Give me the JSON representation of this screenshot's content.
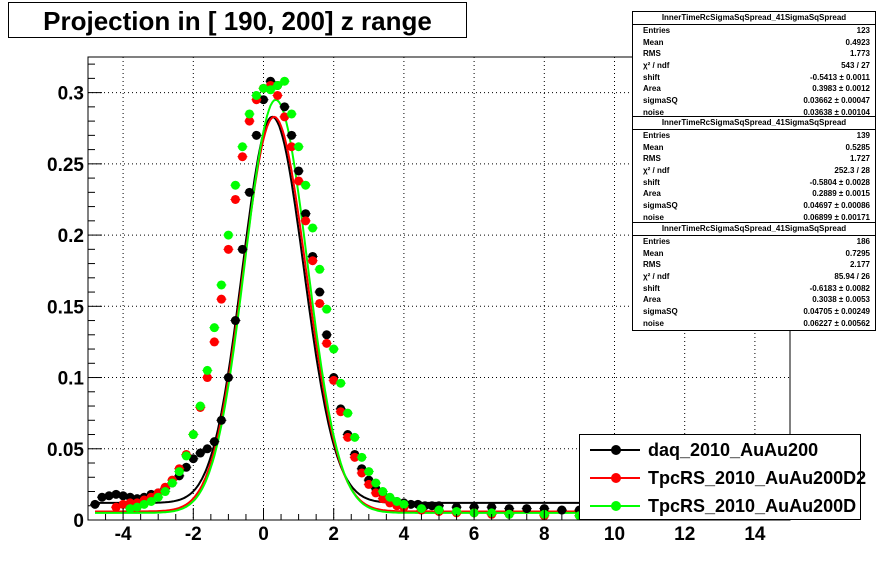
{
  "title": "Projection in [ 190, 200] z range",
  "chart_data": {
    "type": "scatter",
    "title": "Projection in [ 190, 200] z range",
    "xlim": [
      -5,
      15
    ],
    "ylim": [
      0,
      0.325
    ],
    "x_ticks": [
      "-4",
      "-2",
      "0",
      "2",
      "4",
      "6",
      "8",
      "10",
      "12",
      "14"
    ],
    "x_tick_values": [
      -4,
      -2,
      0,
      2,
      4,
      6,
      8,
      10,
      12,
      14
    ],
    "y_ticks": [
      "0",
      "0.05",
      "0.1",
      "0.15",
      "0.2",
      "0.25",
      "0.3"
    ],
    "y_tick_values": [
      0,
      0.05,
      0.1,
      0.15,
      0.2,
      0.25,
      0.3
    ],
    "grid": true,
    "legend_position": "bottom-right",
    "series": [
      {
        "name": "daq_2010_AuAu200",
        "color": "#000000",
        "x": [
          -4.8,
          -4.6,
          -4.4,
          -4.2,
          -4.0,
          -3.8,
          -3.6,
          -3.4,
          -3.2,
          -3.0,
          -2.8,
          -2.6,
          -2.4,
          -2.2,
          -2.0,
          -1.8,
          -1.6,
          -1.4,
          -1.2,
          -1.0,
          -0.8,
          -0.6,
          -0.4,
          -0.2,
          0.0,
          0.2,
          0.4,
          0.6,
          0.8,
          1.0,
          1.2,
          1.4,
          1.6,
          1.8,
          2.0,
          2.2,
          2.4,
          2.6,
          2.8,
          3.0,
          3.2,
          3.4,
          3.6,
          3.8,
          4.0,
          4.2,
          4.4,
          4.6,
          4.8,
          5.0,
          5.5,
          6.0,
          6.5,
          7.0,
          7.5,
          8.0,
          8.5,
          9.0
        ],
        "y": [
          0.011,
          0.016,
          0.017,
          0.018,
          0.017,
          0.016,
          0.015,
          0.016,
          0.018,
          0.019,
          0.022,
          0.026,
          0.031,
          0.037,
          0.043,
          0.047,
          0.05,
          0.055,
          0.07,
          0.1,
          0.14,
          0.19,
          0.23,
          0.27,
          0.295,
          0.308,
          0.305,
          0.29,
          0.27,
          0.245,
          0.215,
          0.185,
          0.16,
          0.13,
          0.1,
          0.078,
          0.06,
          0.046,
          0.036,
          0.028,
          0.022,
          0.018,
          0.015,
          0.013,
          0.012,
          0.011,
          0.011,
          0.01,
          0.01,
          0.01,
          0.009,
          0.009,
          0.009,
          0.008,
          0.008,
          0.008,
          0.007,
          0.007
        ]
      },
      {
        "name": "TpcRS_2010_AuAu200D2",
        "color": "#ff0000",
        "x": [
          -4.2,
          -4.0,
          -3.8,
          -3.6,
          -3.4,
          -3.2,
          -3.0,
          -2.8,
          -2.6,
          -2.4,
          -2.2,
          -2.0,
          -1.8,
          -1.6,
          -1.4,
          -1.2,
          -1.0,
          -0.8,
          -0.6,
          -0.4,
          -0.2,
          0.0,
          0.2,
          0.4,
          0.6,
          0.8,
          1.0,
          1.2,
          1.4,
          1.6,
          1.8,
          2.0,
          2.2,
          2.4,
          2.6,
          2.8,
          3.0,
          3.2,
          3.4,
          3.6,
          3.8,
          4.0,
          4.5,
          5.0,
          5.5,
          6.0,
          6.5,
          7.0,
          8.0,
          9.0
        ],
        "y": [
          0.009,
          0.011,
          0.012,
          0.012,
          0.014,
          0.016,
          0.019,
          0.023,
          0.028,
          0.036,
          0.046,
          0.06,
          0.079,
          0.1,
          0.125,
          0.155,
          0.19,
          0.225,
          0.255,
          0.28,
          0.295,
          0.303,
          0.305,
          0.298,
          0.283,
          0.262,
          0.238,
          0.21,
          0.182,
          0.152,
          0.124,
          0.098,
          0.076,
          0.058,
          0.044,
          0.033,
          0.025,
          0.019,
          0.015,
          0.012,
          0.01,
          0.009,
          0.007,
          0.006,
          0.005,
          0.005,
          0.004,
          0.004,
          0.003,
          0.003
        ]
      },
      {
        "name": "TpcRS_2010_AuAu200D",
        "color": "#00ff00",
        "x": [
          -3.8,
          -3.6,
          -3.4,
          -3.2,
          -3.0,
          -2.8,
          -2.6,
          -2.4,
          -2.2,
          -2.0,
          -1.8,
          -1.6,
          -1.4,
          -1.2,
          -1.0,
          -0.8,
          -0.6,
          -0.4,
          -0.2,
          0.0,
          0.2,
          0.4,
          0.6,
          0.8,
          1.0,
          1.2,
          1.4,
          1.6,
          1.8,
          2.0,
          2.2,
          2.4,
          2.6,
          2.8,
          3.0,
          3.2,
          3.4,
          3.6,
          3.8,
          4.0,
          4.5,
          5.0,
          5.5,
          6.0,
          6.5,
          7.0,
          8.0,
          9.0
        ],
        "y": [
          0.008,
          0.009,
          0.011,
          0.013,
          0.016,
          0.02,
          0.026,
          0.034,
          0.045,
          0.06,
          0.08,
          0.105,
          0.135,
          0.165,
          0.2,
          0.235,
          0.262,
          0.285,
          0.298,
          0.303,
          0.302,
          0.305,
          0.308,
          0.285,
          0.262,
          0.235,
          0.205,
          0.176,
          0.148,
          0.12,
          0.096,
          0.075,
          0.058,
          0.044,
          0.034,
          0.026,
          0.02,
          0.016,
          0.013,
          0.011,
          0.008,
          0.007,
          0.006,
          0.005,
          0.005,
          0.004,
          0.004,
          0.003
        ]
      }
    ],
    "fits": [
      {
        "series": "daq_2010_AuAu200",
        "color": "#000000",
        "shift": -0.5413,
        "area": 0.3983,
        "sigmaSQ": 0.03662,
        "noise": 0.03638
      },
      {
        "series": "TpcRS_2010_AuAu200D2",
        "color": "#ff0000",
        "shift": -0.5804,
        "area": 0.2889,
        "sigmaSQ": 0.04697,
        "noise": 0.06899
      },
      {
        "series": "TpcRS_2010_AuAu200D",
        "color": "#00ff00",
        "shift": -0.6183,
        "area": 0.3038,
        "sigmaSQ": 0.04705,
        "noise": 0.06227
      }
    ]
  },
  "stats_boxes": [
    {
      "header": "InnerTimeRcSigmaSqSpread_41SigmaSqSpread",
      "rows": [
        [
          "Entries",
          "123"
        ],
        [
          "Mean",
          "0.4923"
        ],
        [
          "RMS",
          "1.773"
        ],
        [
          "χ² / ndf",
          "543 / 27"
        ],
        [
          "shift",
          "-0.5413 ± 0.0011"
        ],
        [
          "Area",
          "0.3983 ± 0.0012"
        ],
        [
          "sigmaSQ",
          "0.03662 ± 0.00047"
        ],
        [
          "noise",
          "0.03638 ± 0.00104"
        ]
      ]
    },
    {
      "header": "InnerTimeRcSigmaSqSpread_41SigmaSqSpread",
      "rows": [
        [
          "Entries",
          "139"
        ],
        [
          "Mean",
          "0.5285"
        ],
        [
          "RMS",
          "1.727"
        ],
        [
          "χ² / ndf",
          "252.3 / 28"
        ],
        [
          "shift",
          "-0.5804 ± 0.0028"
        ],
        [
          "Area",
          "0.2889 ± 0.0015"
        ],
        [
          "sigmaSQ",
          "0.04697 ± 0.00086"
        ],
        [
          "noise",
          "0.06899 ± 0.00171"
        ]
      ]
    },
    {
      "header": "InnerTimeRcSigmaSqSpread_41SigmaSqSpread",
      "rows": [
        [
          "Entries",
          "186"
        ],
        [
          "Mean",
          "0.7295"
        ],
        [
          "RMS",
          "2.177"
        ],
        [
          "χ² / ndf",
          "85.94 / 26"
        ],
        [
          "shift",
          "-0.6183 ± 0.0082"
        ],
        [
          "Area",
          "0.3038 ± 0.0053"
        ],
        [
          "sigmaSQ",
          "0.04705 ± 0.00249"
        ],
        [
          "noise",
          "0.06227 ± 0.00562"
        ]
      ]
    }
  ],
  "legend": [
    {
      "label": "daq_2010_AuAu200",
      "color": "#000000"
    },
    {
      "label": "TpcRS_2010_AuAu200D2",
      "color": "#ff0000"
    },
    {
      "label": "TpcRS_2010_AuAu200D",
      "color": "#00ff00"
    }
  ]
}
